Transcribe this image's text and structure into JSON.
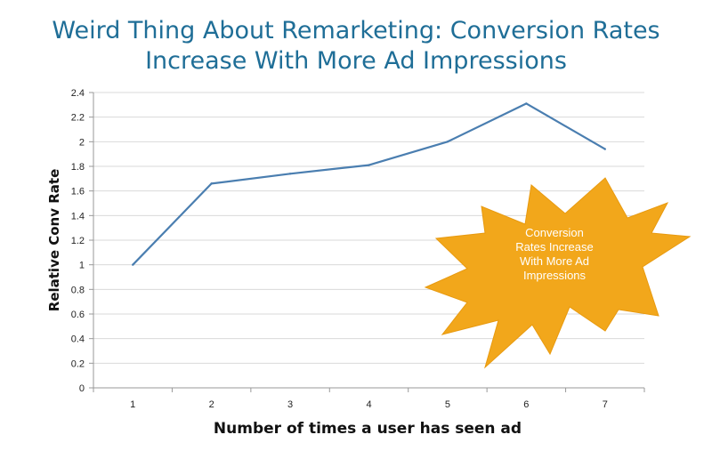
{
  "title_line1": "Weird Thing About Remarketing: Conversion Rates",
  "title_line2": "Increase With More Ad Impressions",
  "chart_data": {
    "type": "line",
    "x": [
      1,
      2,
      3,
      4,
      5,
      6,
      7
    ],
    "xlabel": "Number of times a user has seen ad",
    "ylabel": "Relative Conv Rate",
    "ylim": [
      0,
      2.4
    ],
    "y_ticks": [
      "0",
      "0.2",
      "0.4",
      "0.6",
      "0.8",
      "1",
      "1.2",
      "1.4",
      "1.6",
      "1.8",
      "2",
      "2.2",
      "2.4"
    ],
    "x_ticks": [
      "1",
      "2",
      "3",
      "4",
      "5",
      "6",
      "7"
    ],
    "grid": true,
    "series": [
      {
        "values": [
          1.0,
          1.66,
          1.74,
          1.81,
          2.0,
          2.31,
          1.94
        ],
        "color": "#4a7eb0"
      }
    ]
  },
  "annotation": {
    "lines": [
      "Conversion",
      "Rates Increase",
      "With More Ad",
      "Impressions"
    ],
    "color": "#f2a71b",
    "text_color": "#ffffff"
  }
}
